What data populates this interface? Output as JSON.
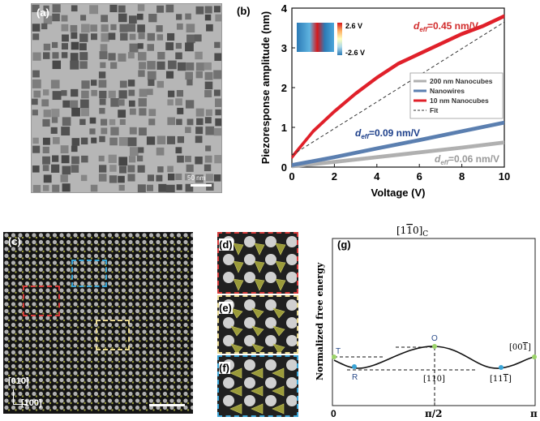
{
  "panel_a": {
    "label": "(a)",
    "scale_bar": "50 nm"
  },
  "panel_b": {
    "label": "(b)",
    "colorbar_max": "2.6 V",
    "colorbar_min": "-2.6 V",
    "colorbar_colors": [
      "#d7191c",
      "#fdae61",
      "#ffffbf",
      "#abd9e9",
      "#2c7bb6"
    ],
    "annot_red": "0.45 nm/V",
    "annot_blue": "0.09 nm/V",
    "annot_gray": "0.06 nm/V",
    "annot_prefix": "d",
    "annot_sub": "eff",
    "annot_eq": "="
  },
  "chart_data": {
    "type": "line",
    "xlabel": "Voltage (V)",
    "ylabel": "Piezoresponse amplitude (nm)",
    "xlim": [
      0,
      10
    ],
    "ylim": [
      0,
      4
    ],
    "xticks": [
      "0",
      "2",
      "4",
      "6",
      "8",
      "10"
    ],
    "yticks": [
      "0",
      "1",
      "2",
      "3",
      "4"
    ],
    "legend_position": "right",
    "series": [
      {
        "name": "200 nm Nanocubes",
        "color": "#b0b0b0",
        "x": [
          0,
          2,
          4,
          6,
          8,
          10
        ],
        "y": [
          0.02,
          0.13,
          0.25,
          0.37,
          0.49,
          0.62
        ]
      },
      {
        "name": "Nanowires",
        "color": "#5b7fb0",
        "x": [
          0,
          2,
          4,
          6,
          8,
          10
        ],
        "y": [
          0.05,
          0.25,
          0.47,
          0.68,
          0.9,
          1.12
        ]
      },
      {
        "name": "10 nm Nanocubes",
        "color": "#e0202a",
        "x": [
          0,
          1,
          2,
          3,
          4,
          5,
          6,
          7,
          8,
          9,
          10
        ],
        "y": [
          0.25,
          0.9,
          1.4,
          1.85,
          2.25,
          2.6,
          2.85,
          3.1,
          3.35,
          3.55,
          3.8
        ]
      },
      {
        "name": "Fit",
        "color": "#333333",
        "dashed": true,
        "x": [
          0,
          10
        ],
        "y": [
          0.3,
          3.65
        ]
      }
    ]
  },
  "panel_c": {
    "label": "(c)",
    "axis_vertical": "[010]",
    "axis_horizontal": "[100]"
  },
  "panel_d": {
    "label": "(d)",
    "border": "#d63a3a"
  },
  "panel_e": {
    "label": "(e)",
    "border": "#e8d890"
  },
  "panel_f": {
    "label": "(f)",
    "border": "#3aa4d6"
  },
  "panel_g": {
    "label": "(g)",
    "title_pre": "[1",
    "title_bar": "1",
    "title_post": "0]",
    "title_sub": "C",
    "ylabel": "Normalized free energy",
    "xtick_0": "0",
    "xtick_mid": "π/2",
    "xtick_end": "π",
    "point_T": "T",
    "point_R": "R",
    "point_O": "O",
    "label_110": "[110]",
    "label_11bar1_pre": "[11",
    "label_11bar1_bar": "1",
    "label_11bar1_post": "]",
    "label_00bar1_pre": "[00",
    "label_00bar1_bar": "1",
    "label_00bar1_post": "]",
    "color_green": "#9bd46a",
    "color_blue": "#3aa4d6"
  }
}
